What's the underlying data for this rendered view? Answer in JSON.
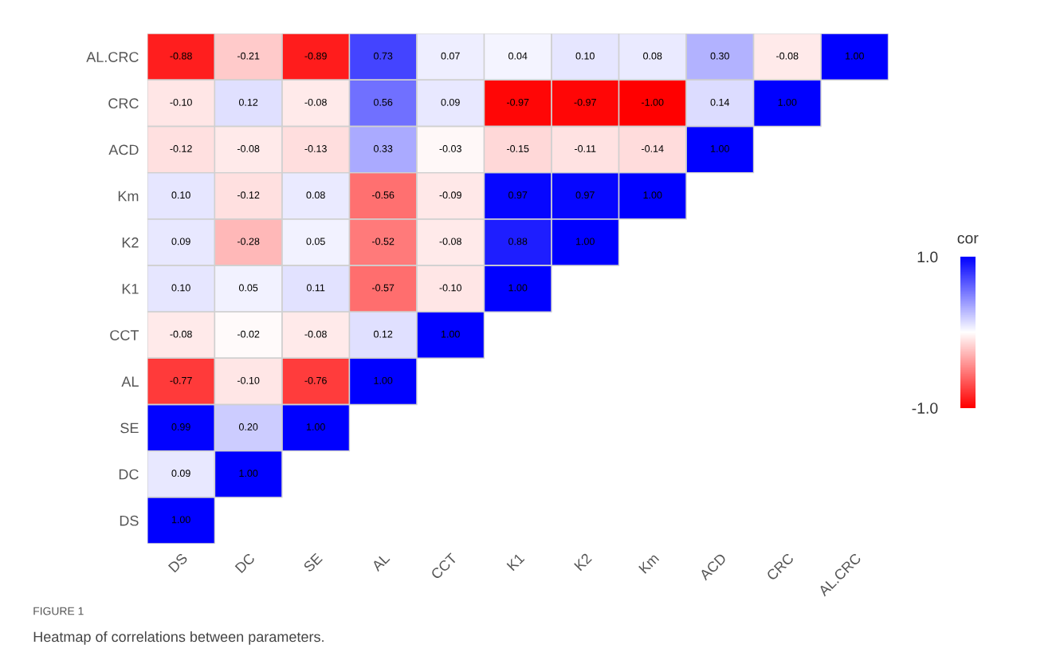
{
  "chart_data": {
    "type": "heatmap",
    "categories": [
      "DS",
      "DC",
      "SE",
      "AL",
      "CCT",
      "K1",
      "K2",
      "Km",
      "ACD",
      "CRC",
      "AL.CRC"
    ],
    "y_categories": [
      "AL.CRC",
      "CRC",
      "ACD",
      "Km",
      "K2",
      "K1",
      "CCT",
      "AL",
      "SE",
      "DC",
      "DS"
    ],
    "cells": [
      [
        -0.88,
        -0.21,
        -0.89,
        0.73,
        0.07,
        0.04,
        0.1,
        0.08,
        0.3,
        -0.08,
        1.0
      ],
      [
        -0.1,
        0.12,
        -0.08,
        0.56,
        0.09,
        -0.97,
        -0.97,
        -1.0,
        0.14,
        1.0,
        null
      ],
      [
        -0.12,
        -0.08,
        -0.13,
        0.33,
        -0.03,
        -0.15,
        -0.11,
        -0.14,
        1.0,
        null,
        null
      ],
      [
        0.1,
        -0.12,
        0.08,
        -0.56,
        -0.09,
        0.97,
        0.97,
        1.0,
        null,
        null,
        null
      ],
      [
        0.09,
        -0.28,
        0.05,
        -0.52,
        -0.08,
        0.88,
        1.0,
        null,
        null,
        null,
        null
      ],
      [
        0.1,
        0.05,
        0.11,
        -0.57,
        -0.1,
        1.0,
        null,
        null,
        null,
        null,
        null
      ],
      [
        -0.08,
        -0.02,
        -0.08,
        0.12,
        1.0,
        null,
        null,
        null,
        null,
        null,
        null
      ],
      [
        -0.77,
        -0.1,
        -0.76,
        1.0,
        null,
        null,
        null,
        null,
        null,
        null,
        null
      ],
      [
        0.99,
        0.2,
        1.0,
        null,
        null,
        null,
        null,
        null,
        null,
        null,
        null
      ],
      [
        0.09,
        1.0,
        null,
        null,
        null,
        null,
        null,
        null,
        null,
        null,
        null
      ],
      [
        1.0,
        null,
        null,
        null,
        null,
        null,
        null,
        null,
        null,
        null,
        null
      ]
    ],
    "cell_labels": [
      [
        "-0.88",
        "-0.21",
        "-0.89",
        "0.73",
        "0.07",
        "0.04",
        "0.10",
        "0.08",
        "0.30",
        "-0.08",
        "1.00"
      ],
      [
        "-0.10",
        "0.12",
        "-0.08",
        "0.56",
        "0.09",
        "-0.97",
        "-0.97",
        "-1.00",
        "0.14",
        "1.00",
        null
      ],
      [
        "-0.12",
        "-0.08",
        "-0.13",
        "0.33",
        "-0.03",
        "-0.15",
        "-0.11",
        "-0.14",
        "1.00",
        null,
        null
      ],
      [
        "0.10",
        "-0.12",
        "0.08",
        "-0.56",
        "-0.09",
        "0.97",
        "0.97",
        "1.00",
        null,
        null,
        null
      ],
      [
        "0.09",
        "-0.28",
        "0.05",
        "-0.52",
        "-0.08",
        "0.88",
        "1.00",
        null,
        null,
        null,
        null
      ],
      [
        "0.10",
        "0.05",
        "0.11",
        "-0.57",
        "-0.10",
        "1.00",
        null,
        null,
        null,
        null,
        null
      ],
      [
        "-0.08",
        "-0.02",
        "-0.08",
        "0.12",
        "1.00",
        null,
        null,
        null,
        null,
        null,
        null
      ],
      [
        "-0.77",
        "-0.10",
        "-0.76",
        "1.00",
        null,
        null,
        null,
        null,
        null,
        null,
        null
      ],
      [
        "0.99",
        "0.20",
        "1.00",
        null,
        null,
        null,
        null,
        null,
        null,
        null,
        null
      ],
      [
        "0.09",
        "1.00",
        null,
        null,
        null,
        null,
        null,
        null,
        null,
        null,
        null
      ],
      [
        "1.00",
        null,
        null,
        null,
        null,
        null,
        null,
        null,
        null,
        null,
        null
      ]
    ],
    "data_labels": true,
    "clabel": "cor",
    "clim": [
      -1,
      1
    ],
    "cticks": [
      {
        "value": 1,
        "label": "1.0"
      },
      {
        "value": -1,
        "label": "-1.0"
      }
    ],
    "annotations": [
      "FIGURE 1",
      "Heatmap of correlations between parameters."
    ]
  }
}
